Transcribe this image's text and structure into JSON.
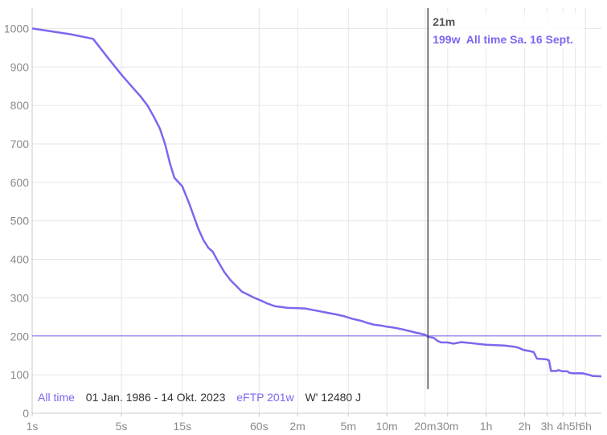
{
  "chart_data": {
    "type": "line",
    "x_scale": "log",
    "xlim_seconds": [
      1,
      28800
    ],
    "ylim": [
      0,
      1050
    ],
    "y_ticks": [
      0,
      100,
      200,
      300,
      400,
      500,
      600,
      700,
      800,
      900,
      1000
    ],
    "x_ticks": [
      {
        "label": "1s",
        "seconds": 1
      },
      {
        "label": "5s",
        "seconds": 5
      },
      {
        "label": "15s",
        "seconds": 15
      },
      {
        "label": "60s",
        "seconds": 60
      },
      {
        "label": "2m",
        "seconds": 120
      },
      {
        "label": "5m",
        "seconds": 300
      },
      {
        "label": "10m",
        "seconds": 600
      },
      {
        "label": "20m",
        "seconds": 1200
      },
      {
        "label": "30m",
        "seconds": 1800
      },
      {
        "label": "1h",
        "seconds": 3600
      },
      {
        "label": "2h",
        "seconds": 7200
      },
      {
        "label": "3h",
        "seconds": 10800
      },
      {
        "label": "4h",
        "seconds": 14400
      },
      {
        "label": "5h",
        "seconds": 18000
      },
      {
        "label": "6h",
        "seconds": 21600
      }
    ],
    "grid": true,
    "series": [
      {
        "name": "All time",
        "color": "#7b68ee",
        "points": [
          [
            1,
            1000
          ],
          [
            2,
            985
          ],
          [
            3,
            973
          ],
          [
            4,
            920
          ],
          [
            5,
            880
          ],
          [
            6,
            850
          ],
          [
            7,
            825
          ],
          [
            8,
            800
          ],
          [
            9,
            770
          ],
          [
            10,
            740
          ],
          [
            11,
            700
          ],
          [
            12,
            650
          ],
          [
            13,
            612
          ],
          [
            15,
            590
          ],
          [
            17,
            545
          ],
          [
            20,
            480
          ],
          [
            22,
            450
          ],
          [
            24,
            430
          ],
          [
            26,
            420
          ],
          [
            28,
            400
          ],
          [
            30,
            383
          ],
          [
            32,
            367
          ],
          [
            36,
            345
          ],
          [
            40,
            330
          ],
          [
            44,
            316
          ],
          [
            48,
            310
          ],
          [
            55,
            300
          ],
          [
            60,
            295
          ],
          [
            70,
            285
          ],
          [
            80,
            278
          ],
          [
            90,
            276
          ],
          [
            100,
            274
          ],
          [
            120,
            273
          ],
          [
            140,
            272
          ],
          [
            160,
            268
          ],
          [
            180,
            265
          ],
          [
            200,
            262
          ],
          [
            240,
            257
          ],
          [
            280,
            252
          ],
          [
            320,
            246
          ],
          [
            380,
            240
          ],
          [
            420,
            235
          ],
          [
            480,
            230
          ],
          [
            540,
            228
          ],
          [
            600,
            225
          ],
          [
            700,
            222
          ],
          [
            800,
            218
          ],
          [
            900,
            214
          ],
          [
            1000,
            210
          ],
          [
            1100,
            207
          ],
          [
            1200,
            204
          ],
          [
            1260,
            199
          ],
          [
            1400,
            196
          ],
          [
            1500,
            188
          ],
          [
            1600,
            184
          ],
          [
            1800,
            184
          ],
          [
            2000,
            181
          ],
          [
            2300,
            185
          ],
          [
            2800,
            182
          ],
          [
            3200,
            180
          ],
          [
            3600,
            178
          ],
          [
            5000,
            176
          ],
          [
            6000,
            173
          ],
          [
            6500,
            170
          ],
          [
            7000,
            165
          ],
          [
            7500,
            163
          ],
          [
            8000,
            161
          ],
          [
            8500,
            159
          ],
          [
            9000,
            142
          ],
          [
            10800,
            140
          ],
          [
            11200,
            137
          ],
          [
            11600,
            110
          ],
          [
            12800,
            110
          ],
          [
            13200,
            112
          ],
          [
            14400,
            109
          ],
          [
            15600,
            109
          ],
          [
            16200,
            105
          ],
          [
            17500,
            104
          ],
          [
            20500,
            104
          ],
          [
            21600,
            102
          ],
          [
            23000,
            100
          ],
          [
            24500,
            97
          ],
          [
            28800,
            96
          ]
        ]
      }
    ],
    "eftp_line": {
      "value": 201,
      "color": "#7b68ee"
    },
    "cursor": {
      "seconds": 1260,
      "time_label": "21m",
      "info_label": "199w  All time Sa. 16 Sept."
    },
    "legend": {
      "series_label": "All time",
      "date_range": "01 Jan. 1986 - 14 Okt. 2023",
      "eftp_label": "eFTP 201w",
      "w_prime_label": "W' 12480 J",
      "placement": "bottom-left"
    }
  }
}
